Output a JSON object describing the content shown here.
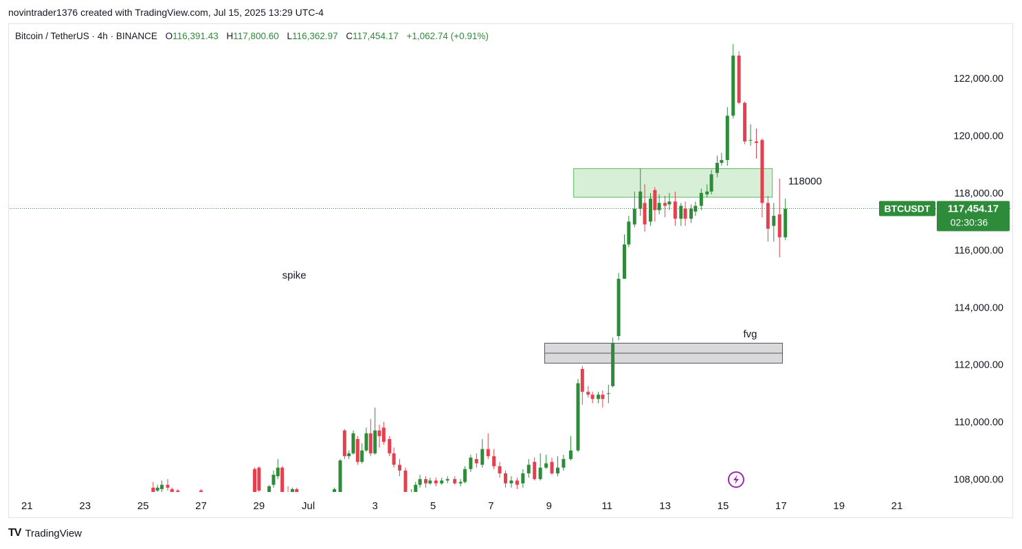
{
  "header": {
    "attribution": "novintrader1376 created with TradingView.com, Jul 15, 2025 13:29 UTC-4"
  },
  "legend": {
    "symbol": "Bitcoin / TetherUS · 4h · BINANCE",
    "o_label": "O",
    "o_value": "116,391.43",
    "h_label": "H",
    "h_value": "117,800.60",
    "l_label": "L",
    "l_value": "116,362.97",
    "c_label": "C",
    "c_value": "117,454.17",
    "change": "+1,062.74 (+0.91%)"
  },
  "price_badge": {
    "ticker": "BTCUSDT",
    "price": "117,454.17",
    "countdown": "02:30:36"
  },
  "footer": {
    "brand": "TradingView"
  },
  "colors": {
    "up": "#2e8b3a",
    "down": "#e5404f",
    "zone_fill": "#d6efd6",
    "zone_stroke": "#5cb85c",
    "fvg_fill": "#d9d9db",
    "fvg_stroke": "#555555",
    "badge": "#2e8b3a"
  },
  "chart_data": {
    "type": "candlestick",
    "title": "Bitcoin / TetherUS · 4h · BINANCE",
    "y_ticks": [
      108000,
      110000,
      112000,
      114000,
      116000,
      118000,
      120000,
      122000
    ],
    "y_tick_labels": [
      "108,000.00",
      "110,000.00",
      "112,000.00",
      "114,000.00",
      "116,000.00",
      "118,000.00",
      "120,000.00",
      "122,000.00"
    ],
    "x_ticks": [
      21,
      23,
      25,
      27,
      29,
      30.7,
      33,
      35,
      37,
      39,
      41,
      43,
      45,
      47,
      49,
      51
    ],
    "x_tick_labels": [
      "21",
      "23",
      "25",
      "27",
      "29",
      "Jul",
      "3",
      "5",
      "7",
      "9",
      "11",
      "13",
      "15",
      "17",
      "19",
      "21"
    ],
    "x_range": [
      20.4,
      52.3
    ],
    "y_range": [
      107550,
      123350
    ],
    "last_price": 117454.17,
    "annotations": [
      {
        "text": "spike",
        "x": 29.8,
        "y": 115000
      },
      {
        "text": "118000",
        "x": 47.25,
        "y": 118300
      },
      {
        "text": "fvg",
        "x": 45.7,
        "y": 112950
      }
    ],
    "zones": [
      {
        "name": "supply",
        "x0": 39.85,
        "x1": 46.7,
        "y0": 117850,
        "y1": 118850
      },
      {
        "name": "fvg",
        "x0": 38.85,
        "x1": 47.05,
        "y0": 112050,
        "y1": 112750,
        "mid": 112400
      }
    ],
    "candles": [
      [
        25.35,
        107700,
        107500,
        107900,
        107450
      ],
      [
        25.5,
        107600,
        107700,
        107800,
        107450
      ],
      [
        25.65,
        107650,
        107800,
        107950,
        107550
      ],
      [
        25.85,
        107800,
        107700,
        108000,
        107600
      ],
      [
        26.0,
        107650,
        107550,
        107700,
        107450
      ],
      [
        26.2,
        107600,
        107500,
        107650,
        107450
      ],
      [
        27.0,
        107600,
        107550,
        107650,
        107500
      ],
      [
        28.85,
        108350,
        107550,
        108400,
        107450
      ],
      [
        29.0,
        108400,
        107600,
        108450,
        107500
      ],
      [
        29.35,
        107550,
        107750,
        107800,
        107450
      ],
      [
        29.5,
        107800,
        108150,
        108300,
        107700
      ],
      [
        29.65,
        108100,
        108400,
        108700,
        108000
      ],
      [
        29.8,
        108400,
        107550,
        108450,
        107500
      ],
      [
        30.0,
        107550,
        107450,
        107750,
        107400
      ],
      [
        30.15,
        107500,
        107650,
        107700,
        107450
      ],
      [
        30.3,
        107650,
        107550,
        107700,
        107500
      ],
      [
        31.6,
        107500,
        107650,
        107700,
        107450
      ],
      [
        31.8,
        107550,
        108650,
        108700,
        107500
      ],
      [
        31.95,
        109700,
        108800,
        109750,
        108700
      ],
      [
        32.1,
        108800,
        108900,
        109000,
        108700
      ],
      [
        32.25,
        108900,
        109600,
        109700,
        108850
      ],
      [
        32.4,
        109400,
        108600,
        109500,
        108500
      ],
      [
        32.55,
        108600,
        109000,
        109250,
        108550
      ],
      [
        32.7,
        109000,
        109600,
        109800,
        108950
      ],
      [
        32.85,
        109600,
        108900,
        110100,
        108800
      ],
      [
        33.0,
        108900,
        109700,
        110500,
        108850
      ],
      [
        33.15,
        109700,
        109500,
        109900,
        109100
      ],
      [
        33.3,
        109800,
        109300,
        110000,
        109200
      ],
      [
        33.5,
        109400,
        108900,
        109500,
        108800
      ],
      [
        33.65,
        108900,
        108500,
        109100,
        108400
      ],
      [
        33.85,
        108500,
        108300,
        108700,
        108100
      ],
      [
        34.05,
        108300,
        107450,
        108400,
        107400
      ],
      [
        34.25,
        107500,
        107550,
        107650,
        107450
      ],
      [
        34.4,
        107550,
        107800,
        107900,
        107450
      ],
      [
        34.55,
        107800,
        108000,
        108150,
        107700
      ],
      [
        34.75,
        108000,
        107850,
        108100,
        107700
      ],
      [
        34.9,
        107850,
        107950,
        108050,
        107800
      ],
      [
        35.1,
        107950,
        107850,
        108050,
        107750
      ],
      [
        35.3,
        107850,
        107950,
        108050,
        107800
      ],
      [
        35.5,
        107950,
        108000,
        108100,
        107850
      ],
      [
        35.75,
        108000,
        107850,
        108100,
        107800
      ],
      [
        35.95,
        107850,
        107900,
        108000,
        107750
      ],
      [
        36.1,
        107900,
        108350,
        108450,
        107850
      ],
      [
        36.3,
        108350,
        108750,
        108850,
        108250
      ],
      [
        36.5,
        108700,
        108550,
        108900,
        108400
      ],
      [
        36.7,
        108500,
        109050,
        109400,
        108400
      ],
      [
        36.9,
        109050,
        108800,
        109600,
        108700
      ],
      [
        37.1,
        108800,
        108450,
        109050,
        108350
      ],
      [
        37.3,
        108450,
        108200,
        108600,
        108050
      ],
      [
        37.5,
        108200,
        107850,
        108300,
        107700
      ],
      [
        37.7,
        107850,
        107950,
        108100,
        107700
      ],
      [
        37.9,
        107950,
        107800,
        108050,
        107650
      ],
      [
        38.1,
        107850,
        108200,
        108350,
        107700
      ],
      [
        38.3,
        108200,
        108500,
        108700,
        108050
      ],
      [
        38.5,
        108600,
        108000,
        108750,
        107950
      ],
      [
        38.7,
        108000,
        108400,
        108900,
        107950
      ],
      [
        38.9,
        108400,
        108550,
        108850,
        108350
      ],
      [
        39.1,
        108600,
        108200,
        108750,
        108150
      ],
      [
        39.3,
        108200,
        108400,
        108800,
        108100
      ],
      [
        39.5,
        108400,
        108700,
        108850,
        108300
      ],
      [
        39.75,
        108700,
        109000,
        109500,
        108650
      ],
      [
        40.0,
        109000,
        111350,
        111500,
        108950
      ],
      [
        40.15,
        111850,
        111050,
        111950,
        110600
      ],
      [
        40.35,
        111050,
        110950,
        111250,
        110850
      ],
      [
        40.5,
        110950,
        110800,
        111050,
        110650
      ],
      [
        40.7,
        110800,
        110950,
        111050,
        110650
      ],
      [
        40.85,
        110950,
        110800,
        111100,
        110500
      ],
      [
        41.05,
        111000,
        111000,
        111300,
        110650
      ],
      [
        41.2,
        111250,
        112750,
        112950,
        111200
      ],
      [
        41.4,
        113000,
        115000,
        115200,
        112850
      ],
      [
        41.6,
        115000,
        116200,
        116550,
        115000
      ],
      [
        41.75,
        116200,
        117000,
        117200,
        116100
      ],
      [
        41.95,
        116900,
        117450,
        118050,
        116800
      ],
      [
        42.15,
        117450,
        118050,
        118850,
        117200
      ],
      [
        42.3,
        117650,
        116900,
        118300,
        116650
      ],
      [
        42.5,
        117000,
        117800,
        118000,
        116850
      ],
      [
        42.65,
        118100,
        117400,
        118200,
        117000
      ],
      [
        42.8,
        117400,
        117650,
        117950,
        117250
      ],
      [
        43.0,
        117650,
        117550,
        117900,
        117150
      ],
      [
        43.15,
        117600,
        117700,
        118000,
        117400
      ],
      [
        43.35,
        117700,
        117100,
        118050,
        116850
      ],
      [
        43.55,
        117100,
        117550,
        117650,
        116850
      ],
      [
        43.7,
        117450,
        117100,
        117700,
        116850
      ],
      [
        43.9,
        117100,
        117450,
        117600,
        116950
      ],
      [
        44.05,
        117350,
        117550,
        117700,
        117200
      ],
      [
        44.25,
        117550,
        118000,
        118150,
        117400
      ],
      [
        44.45,
        117950,
        118050,
        118300,
        117850
      ],
      [
        44.6,
        118050,
        118650,
        118800,
        117950
      ],
      [
        44.8,
        118700,
        119050,
        119300,
        118550
      ],
      [
        44.95,
        119050,
        119150,
        119400,
        118950
      ],
      [
        45.15,
        119150,
        120700,
        121000,
        118950
      ],
      [
        45.35,
        120700,
        122800,
        123200,
        120600
      ],
      [
        45.55,
        122800,
        121150,
        122950,
        121100
      ],
      [
        45.75,
        121150,
        119800,
        121200,
        119700
      ],
      [
        45.95,
        119850,
        119850,
        120400,
        119650
      ],
      [
        46.15,
        119800,
        119750,
        120250,
        119200
      ],
      [
        46.35,
        119850,
        117650,
        119900,
        117150
      ],
      [
        46.55,
        117650,
        116750,
        117900,
        116300
      ],
      [
        46.75,
        116850,
        117200,
        117650,
        116300
      ],
      [
        46.95,
        117250,
        116450,
        118500,
        115750
      ],
      [
        47.15,
        116450,
        117450,
        117800,
        116350
      ]
    ]
  }
}
